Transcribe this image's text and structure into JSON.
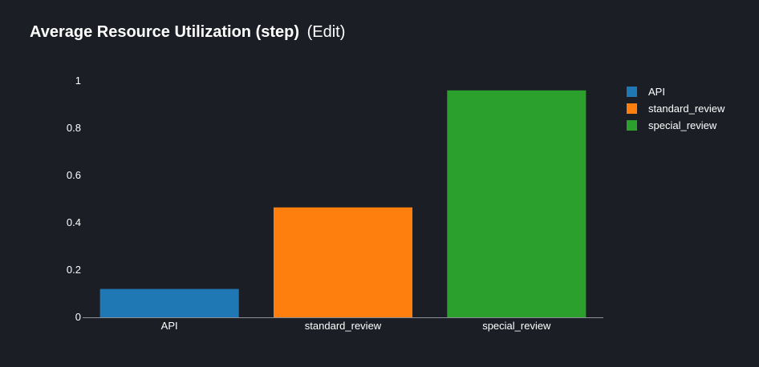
{
  "header": {
    "title": "Average Resource Utilization (step)",
    "edit_label": "(Edit)"
  },
  "colors": {
    "background": "#1b1e25",
    "axis": "#8a8f99",
    "text": "#ffffff"
  },
  "chart_data": {
    "type": "bar",
    "title": "Average Resource Utilization (step)",
    "xlabel": "",
    "ylabel": "",
    "categories": [
      "API",
      "standard_review",
      "special_review"
    ],
    "series": [
      {
        "name": "API",
        "category": "API",
        "value": 0.12,
        "color": "#1f77b4"
      },
      {
        "name": "standard_review",
        "category": "standard_review",
        "value": 0.465,
        "color": "#ff7f0e"
      },
      {
        "name": "special_review",
        "category": "special_review",
        "value": 0.96,
        "color": "#2ca02c"
      }
    ],
    "ylim": [
      0,
      1
    ],
    "yticks": [
      0,
      0.2,
      0.4,
      0.6,
      0.8,
      1
    ],
    "ytick_labels": [
      "0",
      "0.2",
      "0.4",
      "0.6",
      "0.8",
      "1"
    ],
    "grid": false,
    "legend": "top-right"
  }
}
